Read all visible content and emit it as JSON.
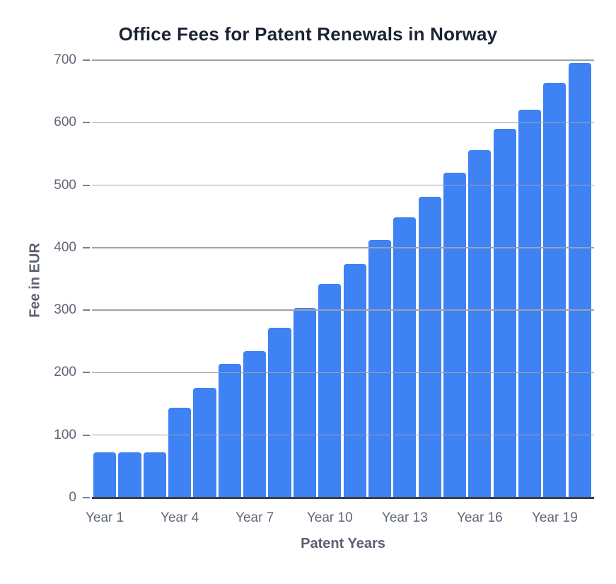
{
  "chart_data": {
    "type": "bar",
    "title": "Office Fees for Patent Renewals in Norway",
    "xlabel": "Patent Years",
    "ylabel": "Fee in EUR",
    "categories": [
      "Year 1",
      "Year 2",
      "Year 3",
      "Year 4",
      "Year 5",
      "Year 6",
      "Year 7",
      "Year 8",
      "Year 9",
      "Year 10",
      "Year 11",
      "Year 12",
      "Year 13",
      "Year 14",
      "Year 15",
      "Year 16",
      "Year 17",
      "Year 18",
      "Year 19",
      "Year 20"
    ],
    "values": [
      73,
      73,
      73,
      144,
      176,
      214,
      235,
      272,
      304,
      342,
      374,
      412,
      449,
      481,
      520,
      556,
      590,
      621,
      664,
      696
    ],
    "ylim": [
      0,
      700
    ],
    "yticks": [
      0,
      100,
      200,
      300,
      400,
      500,
      600,
      700
    ],
    "x_label_every": 3,
    "grid": true,
    "legend_position": "none"
  },
  "colors": {
    "bar": "#3e82f4",
    "title": "#1c2333",
    "axis_title": "#596070",
    "tick_label": "#5f6777",
    "gridline": "#9aa2ae",
    "tick_dash": "#77808d",
    "baseline": "#3a3f4a",
    "background": "#ffffff"
  }
}
